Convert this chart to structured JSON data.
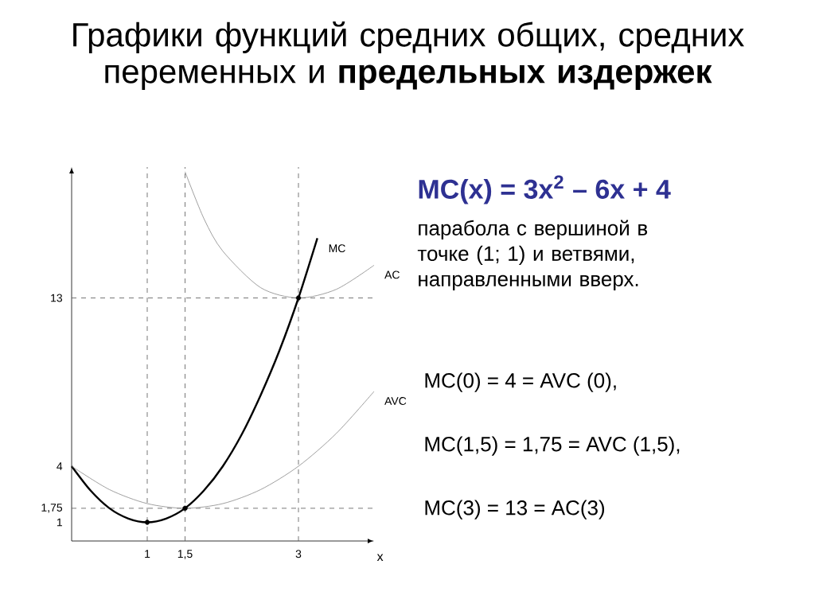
{
  "chart_data": {
    "type": "line",
    "title": "Графики функций средних общих, средних переменных и **предельных издержек**",
    "xlabel": "x",
    "xlim": [
      0,
      4
    ],
    "ylim": [
      0,
      20
    ],
    "xticks": [
      1,
      {
        "value": 1.5,
        "label": "1,5"
      },
      3
    ],
    "yticks": [
      1,
      {
        "value": 1.75,
        "label": "1,75"
      },
      4,
      13
    ],
    "series": [
      {
        "name": "MC",
        "color": "#000000",
        "x": [
          0,
          0.25,
          0.5,
          0.75,
          1,
          1.25,
          1.5,
          1.75,
          2,
          2.25,
          2.5,
          2.75,
          3,
          3.25
        ],
        "values": [
          4,
          2.7,
          1.75,
          1.2,
          1,
          1.2,
          1.75,
          2.7,
          4,
          5.7,
          7.8,
          10.2,
          13,
          16.2
        ]
      },
      {
        "name": "AC",
        "color": "#888888",
        "x": [
          1.5,
          1.75,
          2,
          2.5,
          3,
          3.5,
          4
        ],
        "values": [
          19.75,
          17.24,
          15.5,
          13.55,
          13,
          13.46,
          14.75
        ]
      },
      {
        "name": "AVC",
        "color": "#888888",
        "x": [
          0,
          0.5,
          1,
          1.5,
          2,
          2.5,
          3,
          3.5,
          4
        ],
        "values": [
          4,
          2.75,
          2,
          1.75,
          2,
          2.75,
          4,
          5.75,
          8
        ]
      },
      {
        "type": "scatter",
        "marker": "circle",
        "color": "#000000",
        "x": [
          1,
          1.5,
          3
        ],
        "values": [
          1,
          1.75,
          13
        ]
      }
    ],
    "ref_lines": [
      {
        "axis": "y",
        "value": 13,
        "color": "#555555",
        "line_style": "dashed"
      },
      {
        "axis": "y",
        "value": 1.75,
        "color": "#555555",
        "line_style": "dashed"
      },
      {
        "axis": "x",
        "value": 1,
        "color": "#555555",
        "line_style": "dashed"
      },
      {
        "axis": "x",
        "value": 1.5,
        "color": "#555555",
        "line_style": "dashed"
      },
      {
        "axis": "x",
        "value": 3,
        "color": "#555555",
        "line_style": "dashed"
      }
    ],
    "annotations": [
      "MC(x) = 3x$^{2}$ – 6x + 4",
      "парабола с вершиной в точке (1; 1) и ветвями, направленными вверх.",
      "MC(0) = 4 = AVC (0),",
      "MC(1,5) = 1,75 = AVC (1,5),",
      "MC(3) = 13 = AC(3)"
    ]
  }
}
